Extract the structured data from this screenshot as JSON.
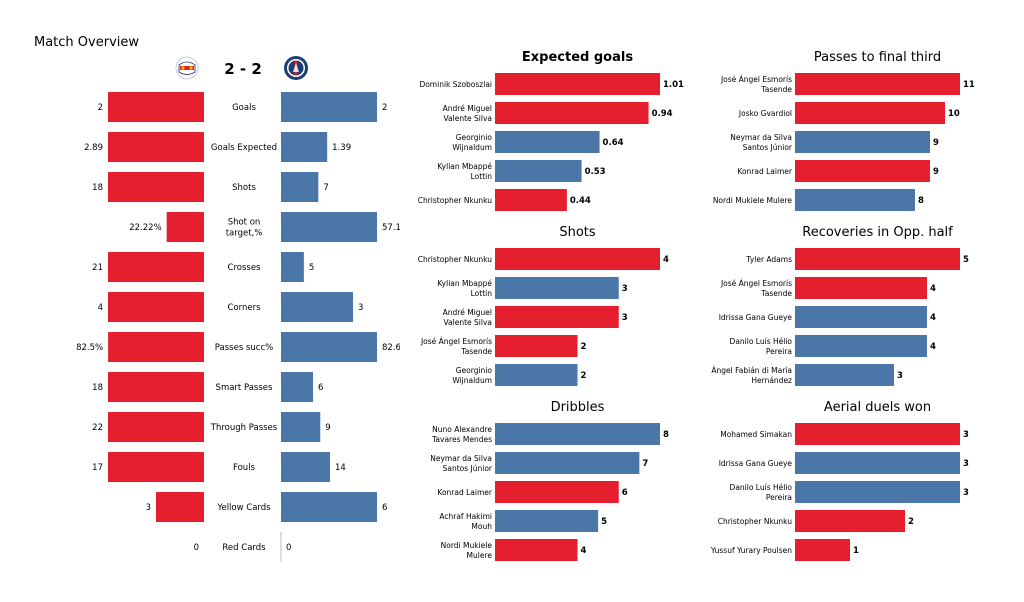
{
  "page": {
    "title": "Match Overview",
    "score": "2 - 2",
    "colors": {
      "home": "#e51f2e",
      "away": "#4a76a8"
    },
    "logos": {
      "home": "rb-leipzig-crest-icon",
      "away": "psg-crest-icon"
    }
  },
  "chart_data": [
    {
      "type": "bar",
      "orientation": "diverging-horizontal",
      "title": "",
      "categories": [
        "Goals",
        "Goals Expected",
        "Shots",
        "Shot on target,%",
        "Crosses",
        "Corners",
        "Passes succ%",
        "Smart Passes",
        "Through Passes",
        "Fouls",
        "Yellow Cards",
        "Red Cards"
      ],
      "series": [
        {
          "side": "left",
          "color": "#e51f2e",
          "values": [
            2,
            2.89,
            18,
            22.22,
            21,
            4,
            82.5,
            18,
            22,
            17,
            3,
            0
          ],
          "labels": [
            "2",
            "2.89",
            "18",
            "22.22%",
            "21",
            "4",
            "82.5%",
            "18",
            "22",
            "17",
            "3",
            "0"
          ]
        },
        {
          "side": "right",
          "color": "#4a76a8",
          "values": [
            2,
            1.39,
            7,
            57.14,
            5,
            3,
            82.6,
            6,
            9,
            14,
            6,
            0
          ],
          "labels": [
            "2",
            "1.39",
            "7",
            "57.14%",
            "5",
            "3",
            "82.6%",
            "6",
            "9",
            "14",
            "6",
            "0"
          ]
        }
      ]
    },
    {
      "type": "bar",
      "orientation": "horizontal",
      "title": "Expected goals",
      "categories": [
        "Dominik Szoboszlai",
        "André Miguel\nValente Silva",
        "Georginio\nWijnaldum",
        "Kylian Mbappé\nLottin",
        "Christopher Nkunku"
      ],
      "values": [
        1.01,
        0.94,
        0.64,
        0.53,
        0.44
      ],
      "labels": [
        "1.01",
        "0.94",
        "0.64",
        "0.53",
        "0.44"
      ],
      "colors": [
        "#e51f2e",
        "#e51f2e",
        "#4a76a8",
        "#4a76a8",
        "#e51f2e"
      ],
      "xlim": [
        0,
        1.01
      ]
    },
    {
      "type": "bar",
      "orientation": "horizontal",
      "title": "Passes to final third",
      "categories": [
        "José Ángel Esmorís\nTasende",
        "Josko Gvardiol",
        "Neymar da Silva\nSantos Júnior",
        "Konrad Laimer",
        "Nordi Mukiele Mulere"
      ],
      "values": [
        11,
        10,
        9,
        9,
        8
      ],
      "labels": [
        "11",
        "10",
        "9",
        "9",
        "8"
      ],
      "colors": [
        "#e51f2e",
        "#e51f2e",
        "#4a76a8",
        "#e51f2e",
        "#4a76a8"
      ],
      "xlim": [
        0,
        11
      ]
    },
    {
      "type": "bar",
      "orientation": "horizontal",
      "title": "Shots",
      "categories": [
        "Christopher Nkunku",
        "Kylian Mbappé\nLottin",
        "André Miguel\nValente Silva",
        "José Ángel Esmorís\nTasende",
        "Georginio\nWijnaldum"
      ],
      "values": [
        4,
        3,
        3,
        2,
        2
      ],
      "labels": [
        "4",
        "3",
        "3",
        "2",
        "2"
      ],
      "colors": [
        "#e51f2e",
        "#4a76a8",
        "#e51f2e",
        "#e51f2e",
        "#4a76a8"
      ],
      "xlim": [
        0,
        4
      ]
    },
    {
      "type": "bar",
      "orientation": "horizontal",
      "title": "Recoveries in Opp. half",
      "categories": [
        "Tyler Adams",
        "José Ángel Esmorís\nTasende",
        "Idrissa Gana Gueye",
        "Danilo Luís Hélio\nPereira",
        "Ángel Fabián di María\nHernández"
      ],
      "values": [
        5,
        4,
        4,
        4,
        3
      ],
      "labels": [
        "5",
        "4",
        "4",
        "4",
        "3"
      ],
      "colors": [
        "#e51f2e",
        "#e51f2e",
        "#4a76a8",
        "#4a76a8",
        "#4a76a8"
      ],
      "xlim": [
        0,
        5
      ]
    },
    {
      "type": "bar",
      "orientation": "horizontal",
      "title": "Dribbles",
      "categories": [
        "Nuno Alexandre\nTavares Mendes",
        "Neymar da Silva\nSantos Júnior",
        "Konrad Laimer",
        "Achraf Hakimi\nMouh",
        "Nordi Mukiele\nMulere"
      ],
      "values": [
        8,
        7,
        6,
        5,
        4
      ],
      "labels": [
        "8",
        "7",
        "6",
        "5",
        "4"
      ],
      "colors": [
        "#4a76a8",
        "#4a76a8",
        "#e51f2e",
        "#4a76a8",
        "#e51f2e"
      ],
      "xlim": [
        0,
        8
      ]
    },
    {
      "type": "bar",
      "orientation": "horizontal",
      "title": "Aerial duels won",
      "categories": [
        "Mohamed Simakan",
        "Idrissa Gana Gueye",
        "Danilo Luís Hélio\nPereira",
        "Christopher Nkunku",
        "Yussuf Yurary Poulsen"
      ],
      "values": [
        3,
        3,
        3,
        2,
        1
      ],
      "labels": [
        "3",
        "3",
        "3",
        "2",
        "1"
      ],
      "colors": [
        "#e51f2e",
        "#4a76a8",
        "#4a76a8",
        "#e51f2e",
        "#e51f2e"
      ],
      "xlim": [
        0,
        3
      ]
    }
  ]
}
